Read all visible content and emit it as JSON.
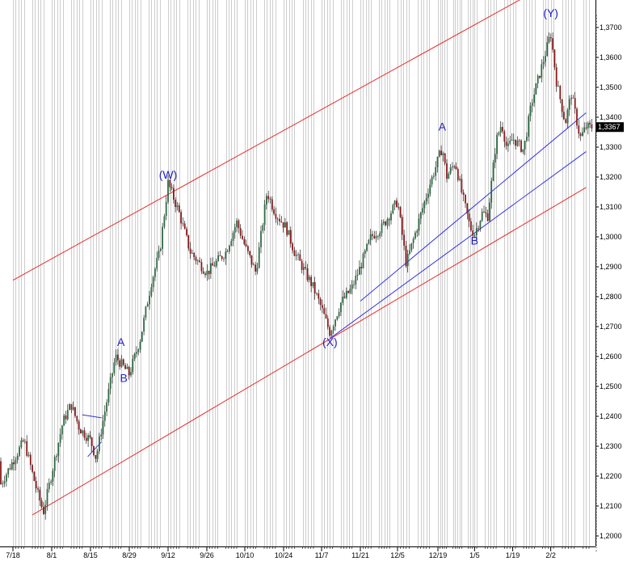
{
  "chart_data": {
    "type": "candlestick",
    "title": "",
    "xlabel": "",
    "ylabel": "",
    "ylim": [
      1.195,
      1.3745
    ],
    "y_ticks": [
      "1,2000",
      "1,2100",
      "1,2200",
      "1,2300",
      "1,2400",
      "1,2500",
      "1,2600",
      "1,2700",
      "1,2800",
      "1,2900",
      "1,3000",
      "1,3100",
      "1,3200",
      "1,3300",
      "1,3400",
      "1,3500",
      "1,3600",
      "1,3700"
    ],
    "y_tick_values": [
      1.2,
      1.21,
      1.22,
      1.23,
      1.24,
      1.25,
      1.26,
      1.27,
      1.28,
      1.29,
      1.3,
      1.31,
      1.32,
      1.33,
      1.34,
      1.35,
      1.36,
      1.37
    ],
    "x_ticks": [
      "7/18",
      "8/1",
      "8/15",
      "8/29",
      "9/12",
      "9/26",
      "10/10",
      "10/24",
      "11/7",
      "11/21",
      "12/5",
      "12/19",
      "1/5",
      "1/19",
      "2/2"
    ],
    "last_price_label": "1,3367",
    "last_price": 1.3367,
    "grid": "vertical",
    "wave_labels": [
      "A",
      "B",
      "(W)",
      "(X)",
      "A",
      "B",
      "(Y)"
    ],
    "wave_points": [
      {
        "label": "A",
        "x": "8/26",
        "y": 1.2635
      },
      {
        "label": "B",
        "x": "8/27",
        "y": 1.2515
      },
      {
        "label": "(W)",
        "x": "9/12",
        "y": 1.3195
      },
      {
        "label": "(X)",
        "x": "11/10",
        "y": 1.2635
      },
      {
        "label": "A",
        "x": "12/21",
        "y": 1.3355
      },
      {
        "label": "B",
        "x": "1/5",
        "y": 1.2975
      },
      {
        "label": "(Y)",
        "x": "2/2",
        "y": 1.3735
      }
    ],
    "anchors": [
      {
        "x": "7/18",
        "y": 1.225
      },
      {
        "x": "7/22",
        "y": 1.232
      },
      {
        "x": "7/25",
        "y": 1.221
      },
      {
        "x": "7/27",
        "y": 1.214
      },
      {
        "x": "7/29",
        "y": 1.208
      },
      {
        "x": "8/1",
        "y": 1.221
      },
      {
        "x": "8/5",
        "y": 1.238
      },
      {
        "x": "8/8",
        "y": 1.244
      },
      {
        "x": "8/11",
        "y": 1.236
      },
      {
        "x": "8/15",
        "y": 1.232
      },
      {
        "x": "8/17",
        "y": 1.226
      },
      {
        "x": "8/19",
        "y": 1.236
      },
      {
        "x": "8/24",
        "y": 1.26
      },
      {
        "x": "8/29",
        "y": 1.254
      },
      {
        "x": "9/2",
        "y": 1.266
      },
      {
        "x": "9/6",
        "y": 1.285
      },
      {
        "x": "9/9",
        "y": 1.295
      },
      {
        "x": "9/12",
        "y": 1.318
      },
      {
        "x": "9/16",
        "y": 1.308
      },
      {
        "x": "9/20",
        "y": 1.295
      },
      {
        "x": "9/26",
        "y": 1.288
      },
      {
        "x": "10/3",
        "y": 1.295
      },
      {
        "x": "10/7",
        "y": 1.305
      },
      {
        "x": "10/10",
        "y": 1.297
      },
      {
        "x": "10/14",
        "y": 1.288
      },
      {
        "x": "10/18",
        "y": 1.315
      },
      {
        "x": "10/21",
        "y": 1.308
      },
      {
        "x": "10/25",
        "y": 1.303
      },
      {
        "x": "10/28",
        "y": 1.295
      },
      {
        "x": "11/1",
        "y": 1.288
      },
      {
        "x": "11/4",
        "y": 1.283
      },
      {
        "x": "11/7",
        "y": 1.276
      },
      {
        "x": "11/10",
        "y": 1.268
      },
      {
        "x": "11/14",
        "y": 1.278
      },
      {
        "x": "11/18",
        "y": 1.283
      },
      {
        "x": "11/21",
        "y": 1.29
      },
      {
        "x": "11/25",
        "y": 1.3
      },
      {
        "x": "11/29",
        "y": 1.303
      },
      {
        "x": "12/5",
        "y": 1.312
      },
      {
        "x": "12/8",
        "y": 1.291
      },
      {
        "x": "12/12",
        "y": 1.304
      },
      {
        "x": "12/16",
        "y": 1.317
      },
      {
        "x": "12/21",
        "y": 1.33
      },
      {
        "x": "12/23",
        "y": 1.32
      },
      {
        "x": "12/27",
        "y": 1.325
      },
      {
        "x": "12/30",
        "y": 1.315
      },
      {
        "x": "1/3",
        "y": 1.303
      },
      {
        "x": "1/5",
        "y": 1.301
      },
      {
        "x": "1/8",
        "y": 1.308
      },
      {
        "x": "1/10",
        "y": 1.307
      },
      {
        "x": "1/13",
        "y": 1.332
      },
      {
        "x": "1/15",
        "y": 1.338
      },
      {
        "x": "1/17",
        "y": 1.329
      },
      {
        "x": "1/19",
        "y": 1.333
      },
      {
        "x": "1/23",
        "y": 1.329
      },
      {
        "x": "1/26",
        "y": 1.345
      },
      {
        "x": "1/30",
        "y": 1.358
      },
      {
        "x": "2/2",
        "y": 1.368
      },
      {
        "x": "2/4",
        "y": 1.352
      },
      {
        "x": "2/7",
        "y": 1.338
      },
      {
        "x": "2/9",
        "y": 1.348
      },
      {
        "x": "2/12",
        "y": 1.333
      },
      {
        "x": "2/14",
        "y": 1.3367
      }
    ],
    "channels": [
      {
        "color": "#e03030",
        "x1": "7/18",
        "y1": 1.2855,
        "x2": "2/14",
        "y2": 1.3915
      },
      {
        "color": "#e03030",
        "x1": "7/25",
        "y1": 1.207,
        "x2": "2/14",
        "y2": 1.3165
      },
      {
        "color": "#3333dd",
        "x1": "11/21",
        "y1": 1.2785,
        "x2": "2/14",
        "y2": 1.3415
      },
      {
        "color": "#3333dd",
        "x1": "11/10",
        "y1": 1.266,
        "x2": "2/14",
        "y2": 1.3285
      },
      {
        "color": "#3333dd",
        "x1": "8/12",
        "y1": 1.2405,
        "x2": "8/19",
        "y2": 1.2395
      },
      {
        "color": "#3333dd",
        "x1": "8/14",
        "y1": 1.2265,
        "x2": "8/19",
        "y2": 1.2315
      }
    ],
    "colors": {
      "up": "#2d6b44",
      "down": "#8a1a1a",
      "channel_outer": "#e03030",
      "channel_inner": "#3333dd",
      "wave_text": "#2020c8",
      "grid": "#b8b8b8",
      "last_price_bg": "#000000"
    }
  }
}
